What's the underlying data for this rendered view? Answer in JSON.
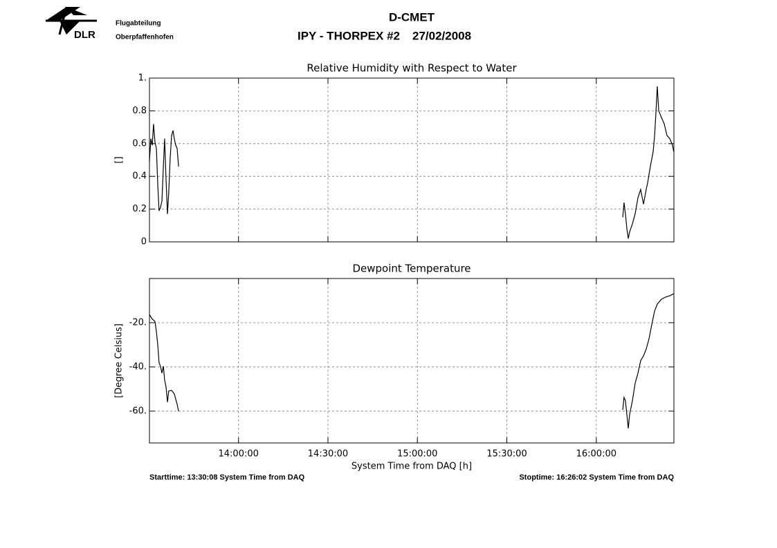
{
  "header": {
    "logo_text": "DLR",
    "org_line1": "Flugabteilung",
    "org_line2": "Oberpfaffenhofen",
    "title": "D-CMET",
    "subtitle": "IPY - THORPEX #2",
    "date": "27/02/2008"
  },
  "chart_data": [
    {
      "type": "line",
      "title": "Relative Humidity with Respect to Water",
      "y_label": "[]",
      "xlim": [
        13.5022,
        16.4339
      ],
      "ylim": [
        0,
        1
      ],
      "xticks": [
        14,
        14.5,
        15,
        15.5,
        16
      ],
      "yticks": [
        0,
        0.2,
        0.4,
        0.6,
        0.8,
        {
          "value": 1,
          "label": "1."
        }
      ],
      "grid": true,
      "x": [
        13.502,
        13.51,
        13.518,
        13.525,
        13.533,
        13.541,
        13.549,
        13.556,
        13.564,
        13.572,
        13.58,
        13.587,
        13.595,
        13.603,
        13.61,
        13.618,
        13.626,
        13.634,
        13.641,
        13.649,
        13.657,
        13.665,
        15.0,
        16.148,
        16.155,
        16.163,
        16.171,
        16.179,
        16.186,
        16.202,
        16.217,
        16.233,
        16.248,
        16.264,
        16.279,
        16.287,
        16.302,
        16.318,
        16.326,
        16.333,
        16.341,
        16.349,
        16.364,
        16.38,
        16.395,
        16.411,
        16.426,
        16.433
      ],
      "series": [
        {
          "color": "#000000",
          "values": [
            0.49,
            0.63,
            0.59,
            0.72,
            0.61,
            0.57,
            0.34,
            0.19,
            0.21,
            0.25,
            0.46,
            0.63,
            0.38,
            0.17,
            0.3,
            0.51,
            0.65,
            0.68,
            0.63,
            0.59,
            0.57,
            0.46,
            null,
            0.15,
            0.24,
            0.17,
            0.08,
            0.02,
            0.06,
            0.11,
            0.17,
            0.27,
            0.32,
            0.23,
            0.32,
            0.36,
            0.46,
            0.55,
            0.65,
            0.78,
            0.95,
            0.8,
            0.76,
            0.72,
            0.65,
            0.63,
            0.59,
            0.55
          ]
        }
      ]
    },
    {
      "type": "line",
      "title": "Dewpoint Temperature",
      "y_label": "[Degree Celsius]",
      "x_label": "System Time from DAQ [h]",
      "xlim": [
        13.5022,
        16.4339
      ],
      "ylim": [
        -74.4,
        0
      ],
      "xticks": [
        {
          "value": 14,
          "label": "14:00:00"
        },
        {
          "value": 14.5,
          "label": "14:30:00"
        },
        {
          "value": 15,
          "label": "15:00:00"
        },
        {
          "value": 15.5,
          "label": "15:30:00"
        },
        {
          "value": 16,
          "label": "16:00:00"
        }
      ],
      "yticks": [
        {
          "value": -60,
          "label": "-60."
        },
        {
          "value": -40,
          "label": "-40."
        },
        {
          "value": -20,
          "label": "-20."
        }
      ],
      "grid": true,
      "x": [
        13.502,
        13.518,
        13.533,
        13.541,
        13.549,
        13.556,
        13.564,
        13.572,
        13.58,
        13.587,
        13.595,
        13.603,
        13.61,
        13.626,
        13.641,
        13.657,
        13.665,
        15.0,
        16.148,
        16.155,
        16.163,
        16.171,
        16.179,
        16.186,
        16.202,
        16.217,
        16.233,
        16.248,
        16.264,
        16.279,
        16.295,
        16.31,
        16.326,
        16.341,
        16.364,
        16.387,
        16.411,
        16.433
      ],
      "series": [
        {
          "color": "#000000",
          "values": [
            -16.3,
            -18.4,
            -19.4,
            -24,
            -30.3,
            -38.1,
            -39.7,
            -42.8,
            -39.7,
            -45.9,
            -49.1,
            -55.9,
            -50.9,
            -50.6,
            -52.2,
            -56.9,
            -60,
            null,
            -59.4,
            -53.8,
            -55.3,
            -61.6,
            -67.8,
            -61.6,
            -55.3,
            -47.5,
            -42.8,
            -37.2,
            -35,
            -31.9,
            -27.2,
            -20.9,
            -14.7,
            -11.6,
            -9.4,
            -8.4,
            -7.8,
            -6.9
          ]
        }
      ]
    }
  ],
  "footer": {
    "start": "Starttime: 13:30:08 System Time from DAQ",
    "stop": "Stoptime: 16:26:02 System Time from DAQ"
  }
}
